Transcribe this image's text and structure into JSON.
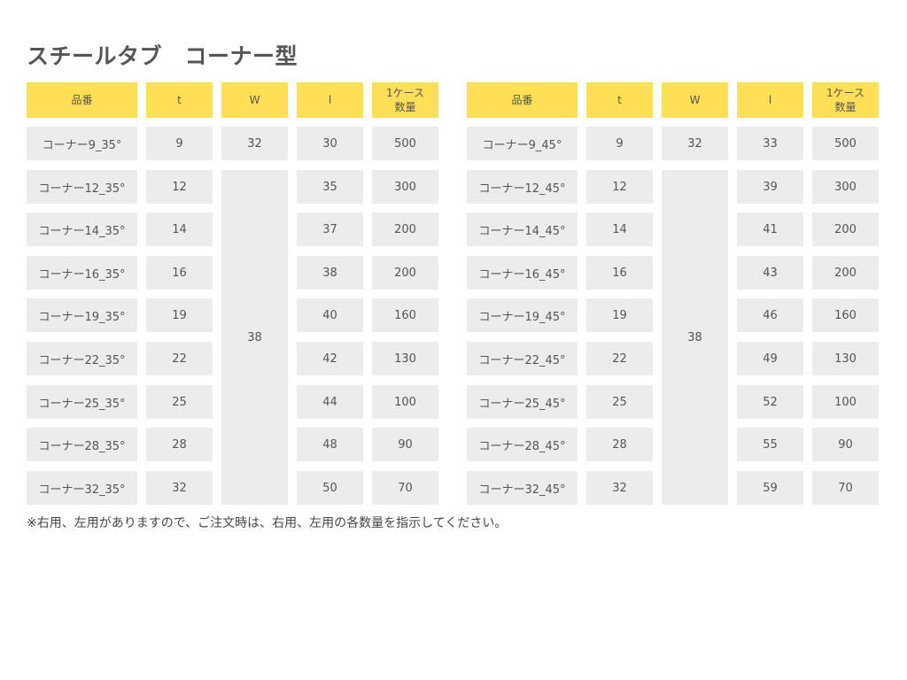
{
  "title": "スチールタブ　コーナー型",
  "headers": [
    "品番",
    "t",
    "W",
    "l",
    "1ケース\n数量"
  ],
  "left_table": {
    "w_first": "32",
    "w_merged": "38",
    "rows": [
      {
        "code": "コーナー9_35°",
        "t": "9",
        "l": "30",
        "qty": "500"
      },
      {
        "code": "コーナー12_35°",
        "t": "12",
        "l": "35",
        "qty": "300"
      },
      {
        "code": "コーナー14_35°",
        "t": "14",
        "l": "37",
        "qty": "200"
      },
      {
        "code": "コーナー16_35°",
        "t": "16",
        "l": "38",
        "qty": "200"
      },
      {
        "code": "コーナー19_35°",
        "t": "19",
        "l": "40",
        "qty": "160"
      },
      {
        "code": "コーナー22_35°",
        "t": "22",
        "l": "42",
        "qty": "130"
      },
      {
        "code": "コーナー25_35°",
        "t": "25",
        "l": "44",
        "qty": "100"
      },
      {
        "code": "コーナー28_35°",
        "t": "28",
        "l": "48",
        "qty": "90"
      },
      {
        "code": "コーナー32_35°",
        "t": "32",
        "l": "50",
        "qty": "70"
      }
    ]
  },
  "right_table": {
    "w_first": "32",
    "w_merged": "38",
    "rows": [
      {
        "code": "コーナー9_45°",
        "t": "9",
        "l": "33",
        "qty": "500"
      },
      {
        "code": "コーナー12_45°",
        "t": "12",
        "l": "39",
        "qty": "300"
      },
      {
        "code": "コーナー14_45°",
        "t": "14",
        "l": "41",
        "qty": "200"
      },
      {
        "code": "コーナー16_45°",
        "t": "16",
        "l": "43",
        "qty": "200"
      },
      {
        "code": "コーナー19_45°",
        "t": "19",
        "l": "46",
        "qty": "160"
      },
      {
        "code": "コーナー22_45°",
        "t": "22",
        "l": "49",
        "qty": "130"
      },
      {
        "code": "コーナー25_45°",
        "t": "25",
        "l": "52",
        "qty": "100"
      },
      {
        "code": "コーナー28_45°",
        "t": "28",
        "l": "55",
        "qty": "90"
      },
      {
        "code": "コーナー32_45°",
        "t": "32",
        "l": "59",
        "qty": "70"
      }
    ]
  },
  "note": "※右用、左用がありますので、ご注文時は、右用、左用の各数量を指示してください。",
  "colors": {
    "header_bg": "#ffdf55",
    "cell_bg": "#ececec"
  }
}
